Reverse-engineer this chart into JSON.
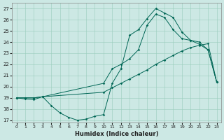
{
  "xlabel": "Humidex (Indice chaleur)",
  "xlim": [
    -0.5,
    23.5
  ],
  "ylim": [
    16.8,
    27.5
  ],
  "yticks": [
    17,
    18,
    19,
    20,
    21,
    22,
    23,
    24,
    25,
    26,
    27
  ],
  "xticks": [
    0,
    1,
    2,
    3,
    4,
    5,
    6,
    7,
    8,
    9,
    10,
    11,
    12,
    13,
    14,
    15,
    16,
    17,
    18,
    19,
    20,
    21,
    22,
    23
  ],
  "bg_color": "#cce8e4",
  "grid_color": "#99ccbb",
  "line_color": "#006655",
  "line1_x": [
    0,
    1,
    2,
    3,
    4,
    5,
    6,
    7,
    8,
    9,
    10,
    11,
    12,
    13,
    14,
    15,
    16,
    17,
    18,
    19,
    20,
    21,
    22,
    23
  ],
  "line1_y": [
    19.0,
    18.9,
    18.85,
    19.1,
    18.3,
    17.65,
    17.25,
    17.0,
    17.1,
    17.35,
    17.5,
    20.3,
    21.6,
    24.6,
    25.1,
    26.1,
    27.0,
    26.6,
    26.2,
    24.9,
    24.15,
    24.0,
    23.3,
    20.4
  ],
  "line2_x": [
    0,
    1,
    2,
    3,
    10,
    11,
    12,
    13,
    14,
    15,
    16,
    17,
    18,
    19,
    20,
    21,
    22,
    23
  ],
  "line2_y": [
    19.0,
    19.0,
    19.0,
    19.1,
    19.5,
    19.9,
    20.3,
    20.7,
    21.1,
    21.5,
    22.0,
    22.4,
    22.8,
    23.2,
    23.5,
    23.7,
    23.85,
    20.4
  ],
  "line3_x": [
    0,
    1,
    2,
    3,
    10,
    11,
    12,
    13,
    14,
    15,
    16,
    17,
    18,
    19,
    20,
    21,
    22,
    23
  ],
  "line3_y": [
    19.0,
    19.0,
    19.0,
    19.1,
    20.3,
    21.6,
    22.0,
    22.5,
    23.3,
    25.5,
    26.5,
    26.2,
    25.1,
    24.3,
    24.15,
    23.8,
    23.3,
    20.4
  ]
}
